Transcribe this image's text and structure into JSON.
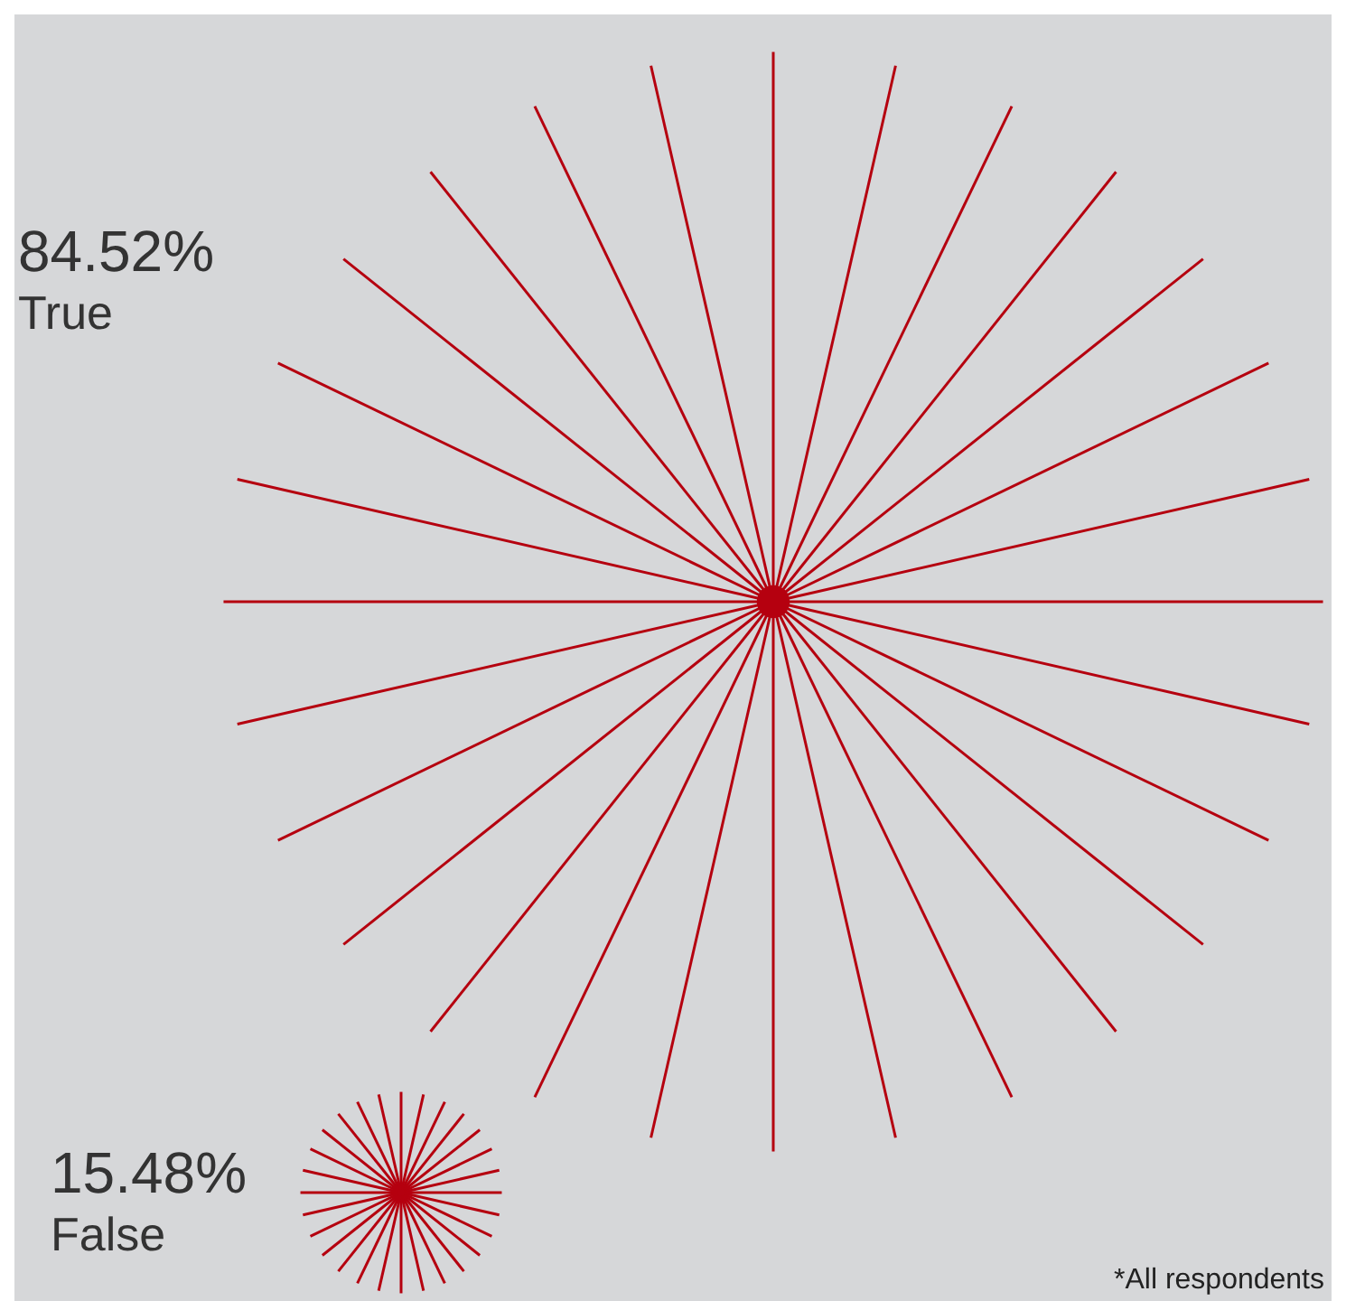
{
  "chart_data": {
    "type": "other",
    "categories": [
      "True",
      "False"
    ],
    "values": [
      84.52,
      15.48
    ],
    "value_labels": [
      "84.52%",
      "15.48%"
    ],
    "colors": [
      "#b5000f",
      "#b5000f"
    ],
    "annotations": [
      "*All respondents"
    ]
  }
}
